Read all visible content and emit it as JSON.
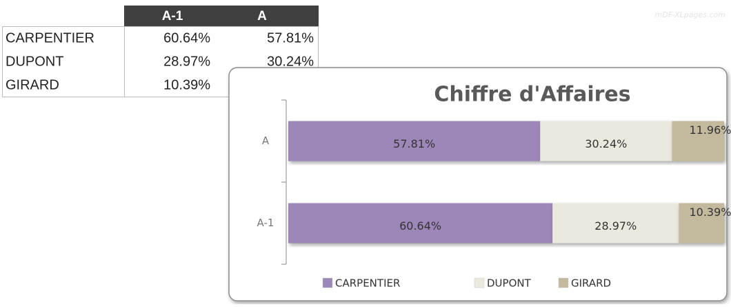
{
  "watermark": "mDF-XLpages.com",
  "table": {
    "header": [
      "A-1",
      "A"
    ],
    "rows": [
      [
        "CARPENTIER",
        "60.64%",
        "57.81%"
      ],
      [
        "DUPONT",
        "28.97%",
        "30.24%"
      ],
      [
        "GIRARD",
        "10.39%"
      ]
    ]
  },
  "chart_data": {
    "type": "bar",
    "orientation": "horizontal",
    "stacked": true,
    "title": "Chiffre d'Affaires",
    "categories": [
      "A",
      "A-1"
    ],
    "series": [
      {
        "name": "CARPENTIER",
        "color": "#9d87b9",
        "values": [
          57.81,
          60.64
        ],
        "value_labels": [
          "57.81%",
          "60.64%"
        ]
      },
      {
        "name": "DUPONT",
        "color": "#ebe8de",
        "values": [
          30.24,
          28.97
        ],
        "value_labels": [
          "30.24%",
          "28.97%"
        ]
      },
      {
        "name": "GIRARD",
        "color": "#c3b99d",
        "values": [
          11.96,
          10.39
        ],
        "value_labels": [
          "11.96%",
          "10.39%"
        ]
      }
    ],
    "legend": "bottom"
  }
}
